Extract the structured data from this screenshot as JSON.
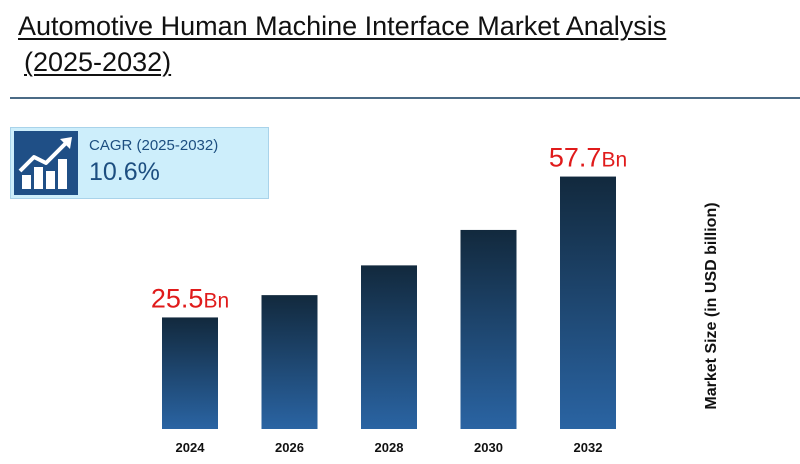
{
  "title": {
    "line1": "Automotive Human Machine Interface Market Analysis",
    "line2": "(2025-2032)"
  },
  "cagr": {
    "label": "CAGR (2025-2032)",
    "value": "10.6%",
    "icon": "growth-chart-icon"
  },
  "colors": {
    "bar_top": "#12293d",
    "bar_bottom": "#2a64a3",
    "callout": "#e01b1b",
    "cagr_bg": "#cdeefb",
    "cagr_text": "#1c4e80",
    "rule": "#4b6b86"
  },
  "chart_data": {
    "type": "bar",
    "categories": [
      "2024",
      "2026",
      "2028",
      "2030",
      "2032"
    ],
    "values": [
      25.5,
      30.6,
      37.4,
      45.5,
      57.7
    ],
    "ylabel": "Market Size (in USD billion)",
    "ylim": [
      0,
      60
    ],
    "grid": false,
    "value_labels": [
      {
        "category": "2024",
        "number": "25.5",
        "unit": "Bn"
      },
      {
        "category": "2032",
        "number": "57.7",
        "unit": "Bn"
      }
    ]
  }
}
